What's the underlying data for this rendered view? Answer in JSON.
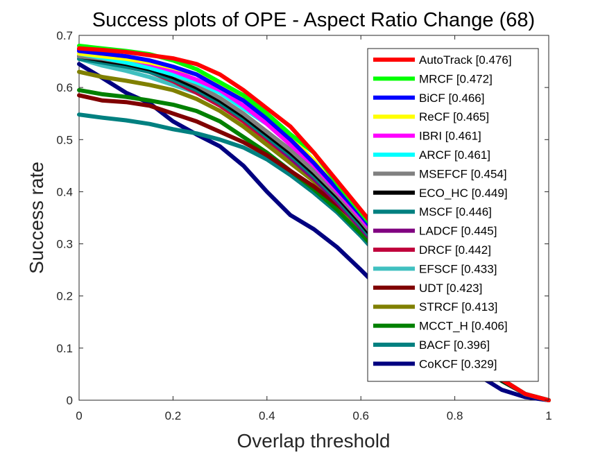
{
  "chart_data": {
    "type": "line",
    "title": "Success plots of OPE - Aspect Ratio Change (68)",
    "xlabel": "Overlap threshold",
    "ylabel": "Success rate",
    "xlim": [
      0,
      1
    ],
    "ylim": [
      0,
      0.7
    ],
    "x_ticks": [
      "0",
      "0.2",
      "0.4",
      "0.6",
      "0.8",
      "1"
    ],
    "y_ticks": [
      "0",
      "0.1",
      "0.2",
      "0.3",
      "0.4",
      "0.5",
      "0.6",
      "0.7"
    ],
    "grid": false,
    "legend_position": "top-right",
    "x": [
      0,
      0.05,
      0.1,
      0.15,
      0.2,
      0.25,
      0.3,
      0.35,
      0.4,
      0.45,
      0.5,
      0.55,
      0.6,
      0.65,
      0.7,
      0.75,
      0.8,
      0.85,
      0.9,
      0.95,
      1.0
    ],
    "series": [
      {
        "name": "AutoTrack [0.476]",
        "color": "#ff0000",
        "values": [
          0.675,
          0.672,
          0.668,
          0.662,
          0.656,
          0.645,
          0.625,
          0.595,
          0.56,
          0.525,
          0.475,
          0.42,
          0.365,
          0.31,
          0.245,
          0.185,
          0.125,
          0.08,
          0.04,
          0.012,
          0.0
        ]
      },
      {
        "name": "MRCF [0.472]",
        "color": "#00ff00",
        "values": [
          0.68,
          0.675,
          0.67,
          0.664,
          0.652,
          0.635,
          0.61,
          0.585,
          0.55,
          0.51,
          0.475,
          0.415,
          0.36,
          0.305,
          0.245,
          0.185,
          0.125,
          0.08,
          0.04,
          0.012,
          0.0
        ]
      },
      {
        "name": "BiCF [0.466]",
        "color": "#0000ff",
        "values": [
          0.67,
          0.665,
          0.66,
          0.652,
          0.64,
          0.625,
          0.6,
          0.575,
          0.54,
          0.5,
          0.455,
          0.405,
          0.355,
          0.3,
          0.24,
          0.18,
          0.12,
          0.075,
          0.04,
          0.012,
          0.0
        ]
      },
      {
        "name": "ReCF [0.465]",
        "color": "#ffff00",
        "values": [
          0.665,
          0.66,
          0.655,
          0.648,
          0.638,
          0.625,
          0.605,
          0.58,
          0.545,
          0.505,
          0.46,
          0.405,
          0.355,
          0.3,
          0.24,
          0.18,
          0.12,
          0.075,
          0.04,
          0.012,
          0.0
        ]
      },
      {
        "name": "IBRI [0.461]",
        "color": "#ff00ff",
        "values": [
          0.67,
          0.664,
          0.656,
          0.645,
          0.632,
          0.615,
          0.595,
          0.565,
          0.53,
          0.49,
          0.45,
          0.4,
          0.35,
          0.295,
          0.235,
          0.175,
          0.12,
          0.075,
          0.04,
          0.012,
          0.0
        ]
      },
      {
        "name": "ARCF [0.461]",
        "color": "#00ffff",
        "values": [
          0.665,
          0.657,
          0.648,
          0.638,
          0.625,
          0.61,
          0.59,
          0.56,
          0.53,
          0.495,
          0.455,
          0.41,
          0.36,
          0.305,
          0.24,
          0.18,
          0.12,
          0.075,
          0.04,
          0.012,
          0.0
        ]
      },
      {
        "name": "MSEFCF [0.454]",
        "color": "#808080",
        "values": [
          0.66,
          0.655,
          0.648,
          0.638,
          0.625,
          0.605,
          0.58,
          0.55,
          0.515,
          0.48,
          0.44,
          0.395,
          0.345,
          0.29,
          0.23,
          0.175,
          0.12,
          0.075,
          0.04,
          0.012,
          0.0
        ]
      },
      {
        "name": "ECO_HC [0.449]",
        "color": "#000000",
        "values": [
          0.66,
          0.652,
          0.645,
          0.635,
          0.62,
          0.6,
          0.575,
          0.545,
          0.51,
          0.475,
          0.435,
          0.39,
          0.34,
          0.285,
          0.225,
          0.17,
          0.115,
          0.072,
          0.038,
          0.012,
          0.0
        ]
      },
      {
        "name": "MSCF [0.446]",
        "color": "#008080",
        "values": [
          0.655,
          0.648,
          0.64,
          0.63,
          0.615,
          0.595,
          0.57,
          0.54,
          0.505,
          0.47,
          0.43,
          0.385,
          0.335,
          0.28,
          0.22,
          0.165,
          0.115,
          0.072,
          0.038,
          0.012,
          0.0
        ]
      },
      {
        "name": "LADCF [0.445]",
        "color": "#800080",
        "values": [
          0.673,
          0.665,
          0.655,
          0.64,
          0.622,
          0.6,
          0.572,
          0.54,
          0.505,
          0.465,
          0.425,
          0.38,
          0.33,
          0.28,
          0.22,
          0.165,
          0.115,
          0.072,
          0.038,
          0.012,
          0.0
        ]
      },
      {
        "name": "DRCF [0.442]",
        "color": "#c0003c",
        "values": [
          0.66,
          0.652,
          0.642,
          0.63,
          0.612,
          0.59,
          0.565,
          0.535,
          0.5,
          0.465,
          0.425,
          0.38,
          0.33,
          0.278,
          0.22,
          0.165,
          0.115,
          0.072,
          0.038,
          0.012,
          0.0
        ]
      },
      {
        "name": "EFSCF [0.433]",
        "color": "#40c0c0",
        "values": [
          0.655,
          0.642,
          0.632,
          0.62,
          0.605,
          0.59,
          0.57,
          0.545,
          0.515,
          0.48,
          0.44,
          0.39,
          0.34,
          0.285,
          0.225,
          0.17,
          0.115,
          0.072,
          0.038,
          0.012,
          0.0
        ]
      },
      {
        "name": "UDT [0.423]",
        "color": "#800000",
        "values": [
          0.585,
          0.575,
          0.572,
          0.565,
          0.55,
          0.535,
          0.515,
          0.495,
          0.47,
          0.44,
          0.41,
          0.375,
          0.335,
          0.285,
          0.228,
          0.172,
          0.118,
          0.072,
          0.038,
          0.012,
          0.0
        ]
      },
      {
        "name": "STRCF [0.413]",
        "color": "#808000",
        "values": [
          0.63,
          0.62,
          0.613,
          0.605,
          0.595,
          0.578,
          0.555,
          0.525,
          0.49,
          0.455,
          0.42,
          0.375,
          0.33,
          0.28,
          0.222,
          0.168,
          0.115,
          0.072,
          0.038,
          0.012,
          0.0
        ]
      },
      {
        "name": "MCCT_H [0.406]",
        "color": "#008000",
        "values": [
          0.595,
          0.587,
          0.582,
          0.575,
          0.567,
          0.555,
          0.535,
          0.505,
          0.475,
          0.44,
          0.405,
          0.365,
          0.32,
          0.272,
          0.218,
          0.165,
          0.113,
          0.07,
          0.037,
          0.012,
          0.0
        ]
      },
      {
        "name": "BACF [0.396]",
        "color": "#008080",
        "values": [
          0.548,
          0.542,
          0.537,
          0.53,
          0.52,
          0.512,
          0.5,
          0.485,
          0.462,
          0.432,
          0.398,
          0.36,
          0.315,
          0.265,
          0.215,
          0.163,
          0.112,
          0.07,
          0.037,
          0.012,
          0.0
        ]
      },
      {
        "name": "CoKCF [0.329]",
        "color": "#000080",
        "values": [
          0.645,
          0.618,
          0.59,
          0.57,
          0.535,
          0.51,
          0.487,
          0.45,
          0.4,
          0.355,
          0.328,
          0.293,
          0.25,
          0.205,
          0.16,
          0.12,
          0.08,
          0.048,
          0.02,
          0.006,
          0.0
        ]
      }
    ]
  }
}
